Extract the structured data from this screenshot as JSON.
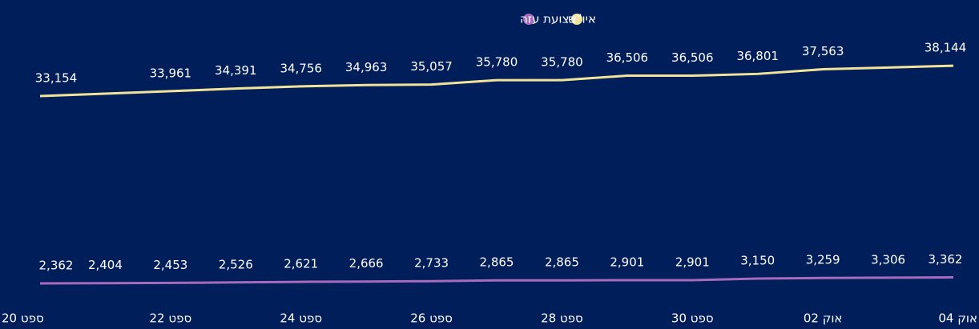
{
  "chart_data": {
    "type": "line",
    "categories": [
      "ספט 20",
      null,
      "ספט 22",
      null,
      "ספט 24",
      null,
      "ספט 26",
      null,
      "ספט 28",
      null,
      "ספט 30",
      null,
      "אוק 02",
      null,
      "אוק 04"
    ],
    "series": [
      {
        "name": "איו\"ש",
        "color": "#f1e39a",
        "values": [
          33154,
          33560,
          33961,
          34391,
          34756,
          34963,
          35057,
          35780,
          35780,
          36506,
          36506,
          36801,
          37563,
          37850,
          38144
        ],
        "value_labels": [
          "33,154",
          null,
          "33,961",
          "34,391",
          "34,756",
          "34,963",
          "35,057",
          "35,780",
          "35,780",
          "36,506",
          "36,506",
          "36,801",
          "37,563",
          null,
          "38,144"
        ]
      },
      {
        "name": "רצועת עזה",
        "color": "#a66bbe",
        "values": [
          2362,
          2404,
          2453,
          2526,
          2621,
          2666,
          2733,
          2865,
          2865,
          2901,
          2901,
          3150,
          3259,
          3306,
          3362
        ],
        "value_labels": [
          "2,362",
          "2,404",
          "2,453",
          "2,526",
          "2,621",
          "2,666",
          "2,733",
          "2,865",
          "2,865",
          "2,901",
          "2,901",
          "3,150",
          "3,259",
          "3,306",
          "3,362"
        ]
      }
    ],
    "ylim": [
      0,
      40000
    ],
    "legend": "top"
  }
}
